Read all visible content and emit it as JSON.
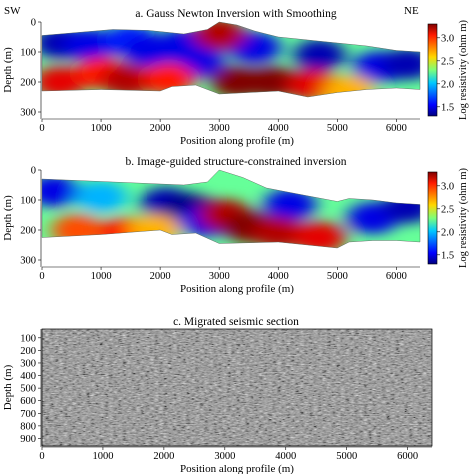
{
  "figure": {
    "sw_label": "SW",
    "ne_label": "NE"
  },
  "chart_data": [
    {
      "type": "heatmap",
      "title": "a. Gauss Newton Inversion with Smoothing",
      "xlabel": "Position along profile (m)",
      "ylabel": "Depth (m)",
      "xlim": [
        0,
        6400
      ],
      "ylim": [
        320,
        0
      ],
      "xticks": [
        "0",
        "1000",
        "2000",
        "3000",
        "4000",
        "5000",
        "6000"
      ],
      "xtick_values": [
        0,
        1000,
        2000,
        3000,
        4000,
        5000,
        6000
      ],
      "yticks": [
        "0",
        "100",
        "200",
        "300"
      ],
      "ytick_values": [
        0,
        100,
        200,
        300
      ],
      "colorbar": {
        "label": "Log resistivity (ohm m)",
        "ticks": [
          "1.5",
          "2.0",
          "2.5",
          "3.0"
        ],
        "tick_values": [
          1.5,
          2.0,
          2.5,
          3.0
        ],
        "range": [
          1.3,
          3.3
        ],
        "colormap": "jet"
      },
      "topography": [
        [
          0,
          45
        ],
        [
          600,
          35
        ],
        [
          1200,
          25
        ],
        [
          1800,
          28
        ],
        [
          2400,
          40
        ],
        [
          2800,
          25
        ],
        [
          3000,
          0
        ],
        [
          3300,
          10
        ],
        [
          3600,
          30
        ],
        [
          4000,
          50
        ],
        [
          4500,
          60
        ],
        [
          5000,
          70
        ],
        [
          5500,
          80
        ],
        [
          6000,
          95
        ],
        [
          6400,
          100
        ]
      ],
      "bottom_depth": [
        [
          0,
          230
        ],
        [
          1000,
          225
        ],
        [
          2000,
          230
        ],
        [
          2200,
          215
        ],
        [
          2600,
          210
        ],
        [
          3000,
          240
        ],
        [
          4000,
          230
        ],
        [
          4500,
          250
        ],
        [
          5000,
          235
        ],
        [
          5500,
          225
        ],
        [
          6000,
          220
        ],
        [
          6400,
          225
        ]
      ],
      "anomalies": [
        {
          "x": 300,
          "depth": 70,
          "value": 1.4
        },
        {
          "x": 800,
          "depth": 75,
          "value": 1.5
        },
        {
          "x": 1500,
          "depth": 60,
          "value": 1.6
        },
        {
          "x": 1800,
          "depth": 95,
          "value": 1.5
        },
        {
          "x": 2400,
          "depth": 75,
          "value": 1.5
        },
        {
          "x": 2650,
          "depth": 130,
          "value": 1.5
        },
        {
          "x": 3600,
          "depth": 85,
          "value": 1.5
        },
        {
          "x": 4700,
          "depth": 110,
          "value": 1.4
        },
        {
          "x": 5700,
          "depth": 150,
          "value": 1.5
        },
        {
          "x": 6200,
          "depth": 140,
          "value": 1.4
        },
        {
          "x": 300,
          "depth": 200,
          "value": 3.1
        },
        {
          "x": 1000,
          "depth": 170,
          "value": 3.0
        },
        {
          "x": 1450,
          "depth": 195,
          "value": 3.2
        },
        {
          "x": 2150,
          "depth": 190,
          "value": 3.0
        },
        {
          "x": 3000,
          "depth": 40,
          "value": 3.2
        },
        {
          "x": 3300,
          "depth": 200,
          "value": 3.3
        },
        {
          "x": 3900,
          "depth": 200,
          "value": 3.3
        },
        {
          "x": 4600,
          "depth": 210,
          "value": 3.1
        },
        {
          "x": 5200,
          "depth": 230,
          "value": 2.7
        }
      ]
    },
    {
      "type": "heatmap",
      "title": "b. Image-guided structure-constrained inversion",
      "xlabel": "Position along profile (m)",
      "ylabel": "Depth (m)",
      "xlim": [
        0,
        6400
      ],
      "ylim": [
        320,
        0
      ],
      "xticks": [
        "0",
        "1000",
        "2000",
        "3000",
        "4000",
        "5000",
        "6000"
      ],
      "xtick_values": [
        0,
        1000,
        2000,
        3000,
        4000,
        5000,
        6000
      ],
      "yticks": [
        "0",
        "100",
        "200",
        "300"
      ],
      "ytick_values": [
        0,
        100,
        200,
        300
      ],
      "colorbar": {
        "label": "Log resistivity (ohm m)",
        "ticks": [
          "1.5",
          "2.0",
          "2.5",
          "3.0"
        ],
        "tick_values": [
          1.5,
          2.0,
          2.5,
          3.0
        ],
        "range": [
          1.3,
          3.3
        ],
        "colormap": "jet"
      },
      "topography": [
        [
          0,
          30
        ],
        [
          600,
          35
        ],
        [
          1200,
          40
        ],
        [
          1800,
          45
        ],
        [
          2400,
          50
        ],
        [
          2800,
          40
        ],
        [
          3000,
          0
        ],
        [
          3400,
          25
        ],
        [
          3800,
          60
        ],
        [
          4200,
          75
        ],
        [
          4600,
          90
        ],
        [
          5000,
          105
        ],
        [
          5200,
          95
        ],
        [
          5600,
          100
        ],
        [
          6000,
          110
        ],
        [
          6400,
          115
        ]
      ],
      "bottom_depth": [
        [
          0,
          225
        ],
        [
          1000,
          215
        ],
        [
          2000,
          200
        ],
        [
          2200,
          215
        ],
        [
          2600,
          210
        ],
        [
          3000,
          245
        ],
        [
          4000,
          240
        ],
        [
          4500,
          250
        ],
        [
          5000,
          260
        ],
        [
          5200,
          240
        ],
        [
          5600,
          235
        ],
        [
          6000,
          235
        ],
        [
          6400,
          240
        ]
      ],
      "anomalies": [
        {
          "x": 200,
          "depth": 70,
          "value": 1.5
        },
        {
          "x": 1000,
          "depth": 90,
          "value": 1.9
        },
        {
          "x": 2100,
          "depth": 110,
          "value": 1.4
        },
        {
          "x": 2500,
          "depth": 130,
          "value": 1.3
        },
        {
          "x": 2750,
          "depth": 170,
          "value": 1.5
        },
        {
          "x": 4200,
          "depth": 115,
          "value": 1.5
        },
        {
          "x": 5600,
          "depth": 160,
          "value": 1.5
        },
        {
          "x": 6200,
          "depth": 125,
          "value": 1.4
        },
        {
          "x": 600,
          "depth": 200,
          "value": 2.9
        },
        {
          "x": 1400,
          "depth": 210,
          "value": 3.0
        },
        {
          "x": 1900,
          "depth": 200,
          "value": 2.7
        },
        {
          "x": 3100,
          "depth": 150,
          "value": 3.2
        },
        {
          "x": 3500,
          "depth": 190,
          "value": 3.3
        },
        {
          "x": 4000,
          "depth": 210,
          "value": 3.2
        },
        {
          "x": 4700,
          "depth": 225,
          "value": 3.1
        }
      ]
    },
    {
      "type": "heatmap",
      "title": "c. Migrated seismic section",
      "xlabel": "Position along profile (m)",
      "ylabel": "Depth (m)",
      "xlim": [
        0,
        6400
      ],
      "ylim": [
        960,
        30
      ],
      "xticks": [
        "0",
        "1000",
        "2000",
        "3000",
        "4000",
        "5000",
        "6000"
      ],
      "xtick_values": [
        0,
        1000,
        2000,
        3000,
        4000,
        5000,
        6000
      ],
      "yticks": [
        "100",
        "200",
        "300",
        "400",
        "500",
        "600",
        "700",
        "800",
        "900"
      ],
      "ytick_values": [
        100,
        200,
        300,
        400,
        500,
        600,
        700,
        800,
        900
      ],
      "colormap": "gray"
    }
  ]
}
